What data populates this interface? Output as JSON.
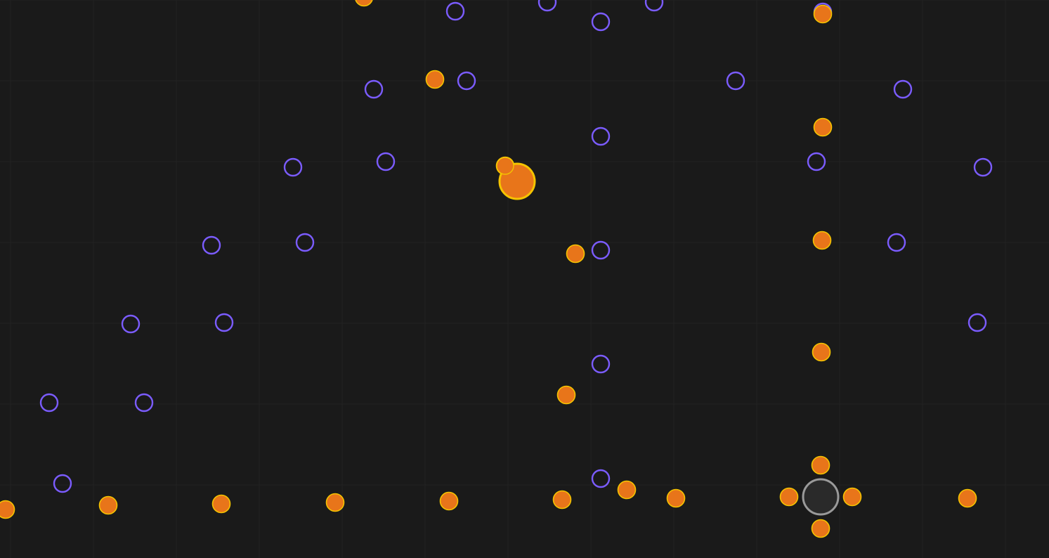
{
  "game": {
    "scene": "dot-field",
    "colors": {
      "background": "#1a1a1a",
      "grid": "#222222",
      "outline_dot": "#7b5cff",
      "orange_dot": "#e8751a",
      "orange_dot_rim": "#f5c400",
      "player_fill": "#2a2a2a",
      "player_ring": "#9a9a9a"
    },
    "icons": {
      "outline_dot": "ring-icon",
      "orange_dot": "orb-icon",
      "player": "player-ring-icon",
      "large_orb": "large-orb-icon"
    }
  }
}
